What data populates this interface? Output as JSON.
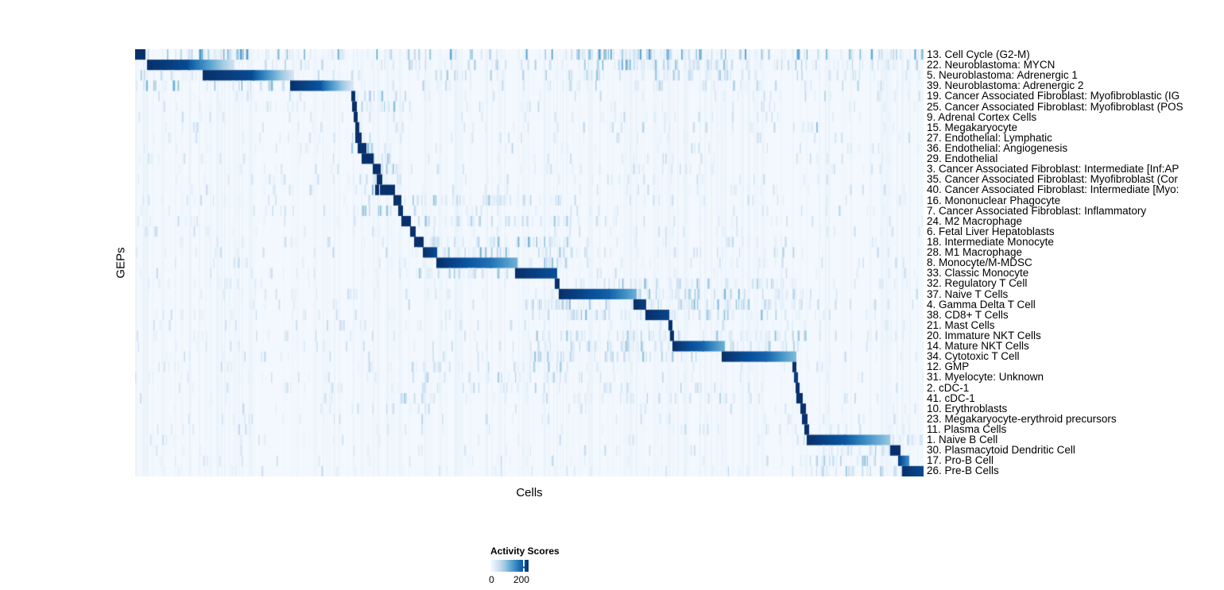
{
  "colors": {
    "scale": [
      "#f7fbff",
      "#deebf7",
      "#c6dbef",
      "#9ecae1",
      "#6baed6",
      "#4292c6",
      "#2171b5",
      "#08519c",
      "#08306b"
    ],
    "text": "#000000",
    "page_background": "#ffffff"
  },
  "legend": {
    "title": "Activity Scores",
    "min_label": "0",
    "max_label": "200"
  },
  "chart_data": {
    "type": "heatmap",
    "title": "",
    "xlabel": "Cells",
    "ylabel": "GEPs",
    "grid": false,
    "legend_position": "bottom",
    "colorbar": {
      "title": "Activity Scores",
      "tick_values": [
        0,
        200
      ],
      "tick_labels": [
        "0",
        "200"
      ]
    },
    "n_rows": 41,
    "rows": [
      {
        "label": "13. Cell Cycle (G2-M)",
        "blocks": [
          [
            0.0,
            0.012,
            1,
            1
          ]
        ],
        "noise": [
          [
            0.012,
            1,
            0.3,
            0.55
          ],
          [
            0.55,
            0.72,
            0.35,
            0.6
          ],
          [
            0.07,
            0.14,
            0.4,
            0.6
          ]
        ]
      },
      {
        "label": "22. Neuroblastoma: MYCN",
        "blocks": [
          [
            0.016,
            0.068,
            1,
            0.9
          ],
          [
            0.068,
            0.125,
            0.85,
            0.2
          ]
        ],
        "noise": [
          [
            0.125,
            1,
            0.22,
            0.28
          ],
          [
            0.55,
            0.75,
            0.3,
            0.45
          ]
        ]
      },
      {
        "label": "5. Neuroblastoma: Adrenergic 1",
        "blocks": [
          [
            0.086,
            0.15,
            1,
            0.9
          ],
          [
            0.15,
            0.2,
            0.85,
            0.18
          ]
        ],
        "noise": [
          [
            0,
            0.085,
            0.3,
            0.4
          ],
          [
            0.2,
            1,
            0.15,
            0.28
          ],
          [
            0.55,
            0.75,
            0.25,
            0.4
          ]
        ]
      },
      {
        "label": "39. Neuroblastoma: Adrenergic 2",
        "blocks": [
          [
            0.197,
            0.237,
            1,
            0.85
          ],
          [
            0.237,
            0.276,
            0.8,
            0.15
          ]
        ],
        "noise": [
          [
            0,
            0.19,
            0.3,
            0.45
          ],
          [
            0.28,
            1,
            0.14,
            0.28
          ]
        ]
      },
      {
        "label": "19. Cancer Associated Fibroblast: Myofibroblastic (IG",
        "blocks": [
          [
            0.2745,
            0.278,
            1,
            1
          ]
        ],
        "noise": [
          [
            0.28,
            0.35,
            0.25,
            0.4
          ],
          [
            0,
            1,
            0.08,
            0.22
          ]
        ]
      },
      {
        "label": "25. Cancer Associated Fibroblast: Myofibroblast (POS",
        "blocks": [
          [
            0.276,
            0.28,
            1,
            1
          ]
        ],
        "noise": [
          [
            0.28,
            0.35,
            0.25,
            0.4
          ],
          [
            0,
            1,
            0.08,
            0.22
          ]
        ]
      },
      {
        "label": "9. Adrenal Cortex Cells",
        "blocks": [
          [
            0.278,
            0.281,
            1,
            1
          ]
        ],
        "noise": [
          [
            0,
            1,
            0.08,
            0.2
          ]
        ]
      },
      {
        "label": "15. Megakaryocyte",
        "blocks": [
          [
            0.2795,
            0.2825,
            1,
            1
          ]
        ],
        "noise": [
          [
            0,
            1,
            0.08,
            0.22
          ],
          [
            0.84,
            0.88,
            0.2,
            0.4
          ]
        ]
      },
      {
        "label": "27. Endothelial: Lymphatic",
        "blocks": [
          [
            0.28,
            0.286,
            1,
            1
          ]
        ],
        "noise": [
          [
            0.27,
            0.3,
            0.3,
            0.45
          ],
          [
            0,
            1,
            0.07,
            0.2
          ]
        ]
      },
      {
        "label": "36. Endothelial: Angiogenesis",
        "blocks": [
          [
            0.283,
            0.292,
            1,
            1
          ]
        ],
        "noise": [
          [
            0.27,
            0.31,
            0.3,
            0.45
          ],
          [
            0,
            1,
            0.07,
            0.2
          ]
        ]
      },
      {
        "label": "29. Endothelial",
        "blocks": [
          [
            0.288,
            0.301,
            1,
            1
          ]
        ],
        "noise": [
          [
            0.27,
            0.32,
            0.3,
            0.45
          ],
          [
            0,
            1,
            0.07,
            0.2
          ]
        ]
      },
      {
        "label": "3. Cancer Associated Fibroblast: Intermediate [Inf:AP",
        "blocks": [
          [
            0.302,
            0.31,
            1,
            1
          ]
        ],
        "noise": [
          [
            0.31,
            0.35,
            0.3,
            0.5
          ],
          [
            0,
            1,
            0.08,
            0.2
          ]
        ]
      },
      {
        "label": "35. Cancer Associated Fibroblast: Myofibroblast (Cor",
        "blocks": [
          [
            0.307,
            0.312,
            1,
            1
          ]
        ],
        "noise": [
          [
            0.27,
            0.35,
            0.25,
            0.4
          ],
          [
            0,
            1,
            0.08,
            0.2
          ]
        ]
      },
      {
        "label": "40. Cancer Associated Fibroblast: Intermediate [Myo:",
        "blocks": [
          [
            0.3045,
            0.3075,
            1,
            1
          ],
          [
            0.311,
            0.328,
            1,
            1
          ]
        ],
        "noise": [
          [
            0.27,
            0.35,
            0.25,
            0.4
          ],
          [
            0,
            1,
            0.08,
            0.2
          ]
        ]
      },
      {
        "label": "16. Mononuclear Phagocyte",
        "blocks": [
          [
            0.328,
            0.336,
            1,
            1
          ]
        ],
        "noise": [
          [
            0.336,
            0.55,
            0.3,
            0.4
          ],
          [
            0,
            1,
            0.08,
            0.2
          ]
        ]
      },
      {
        "label": "7. Cancer Associated Fibroblast: Inflammatory",
        "blocks": [
          [
            0.334,
            0.338,
            1,
            1
          ]
        ],
        "noise": [
          [
            0.27,
            0.34,
            0.25,
            0.4
          ],
          [
            0,
            1,
            0.08,
            0.2
          ]
        ]
      },
      {
        "label": "24. M2 Macrophage",
        "blocks": [
          [
            0.338,
            0.348,
            1,
            1
          ]
        ],
        "noise": [
          [
            0.35,
            0.55,
            0.3,
            0.4
          ],
          [
            0,
            1,
            0.08,
            0.2
          ]
        ]
      },
      {
        "label": "6. Fetal Liver Hepatoblasts",
        "blocks": [
          [
            0.349,
            0.354,
            1,
            1
          ]
        ],
        "noise": [
          [
            0,
            1,
            0.08,
            0.2
          ]
        ]
      },
      {
        "label": "18. Intermediate Monocyte",
        "blocks": [
          [
            0.354,
            0.364,
            1,
            1
          ]
        ],
        "noise": [
          [
            0.364,
            0.55,
            0.35,
            0.45
          ],
          [
            0,
            1,
            0.08,
            0.2
          ]
        ]
      },
      {
        "label": "28. M1 Macrophage",
        "blocks": [
          [
            0.365,
            0.382,
            1,
            0.9
          ]
        ],
        "noise": [
          [
            0.382,
            0.55,
            0.35,
            0.45
          ],
          [
            0.55,
            0.85,
            0.12,
            0.25
          ],
          [
            0,
            1,
            0.07,
            0.2
          ]
        ]
      },
      {
        "label": "8. Monocyte/M-MDSC",
        "blocks": [
          [
            0.383,
            0.45,
            1,
            0.75
          ],
          [
            0.45,
            0.483,
            0.75,
            0.5
          ]
        ],
        "noise": [
          [
            0.483,
            0.55,
            0.35,
            0.45
          ],
          [
            0,
            1,
            0.08,
            0.2
          ]
        ]
      },
      {
        "label": "33. Classic Monocyte",
        "blocks": [
          [
            0.482,
            0.534,
            1,
            0.88
          ]
        ],
        "noise": [
          [
            0.33,
            0.48,
            0.3,
            0.4
          ],
          [
            0,
            1,
            0.08,
            0.2
          ]
        ]
      },
      {
        "label": "32. Regulatory T Cell",
        "blocks": [
          [
            0.533,
            0.537,
            1,
            1
          ]
        ],
        "noise": [
          [
            0.54,
            0.85,
            0.3,
            0.38
          ],
          [
            0,
            1,
            0.08,
            0.2
          ]
        ]
      },
      {
        "label": "37. Naive T Cells",
        "blocks": [
          [
            0.538,
            0.6,
            1,
            0.82
          ],
          [
            0.6,
            0.635,
            0.82,
            0.5
          ]
        ],
        "noise": [
          [
            0.635,
            0.85,
            0.3,
            0.38
          ],
          [
            0,
            1,
            0.08,
            0.2
          ]
        ]
      },
      {
        "label": "4. Gamma Delta T Cell",
        "blocks": [
          [
            0.633,
            0.647,
            1,
            0.95
          ]
        ],
        "noise": [
          [
            0.5,
            0.85,
            0.3,
            0.38
          ],
          [
            0,
            1,
            0.08,
            0.2
          ]
        ]
      },
      {
        "label": "38. CD8+ T Cells",
        "blocks": [
          [
            0.648,
            0.676,
            1,
            0.92
          ]
        ],
        "noise": [
          [
            0.5,
            0.85,
            0.3,
            0.38
          ],
          [
            0,
            1,
            0.08,
            0.2
          ]
        ]
      },
      {
        "label": "21. Mast Cells",
        "blocks": [
          [
            0.6765,
            0.6795,
            1,
            1
          ]
        ],
        "noise": [
          [
            0,
            1,
            0.09,
            0.22
          ]
        ]
      },
      {
        "label": "20. Immature NKT Cells",
        "blocks": [
          [
            0.679,
            0.682,
            1,
            1
          ]
        ],
        "noise": [
          [
            0.5,
            0.85,
            0.3,
            0.38
          ],
          [
            0,
            1,
            0.08,
            0.2
          ]
        ]
      },
      {
        "label": "14. Mature NKT Cells",
        "blocks": [
          [
            0.682,
            0.72,
            1,
            0.8
          ],
          [
            0.72,
            0.746,
            0.8,
            0.5
          ]
        ],
        "noise": [
          [
            0.5,
            0.68,
            0.3,
            0.38
          ],
          [
            0.746,
            0.85,
            0.3,
            0.38
          ],
          [
            0,
            1,
            0.07,
            0.2
          ]
        ]
      },
      {
        "label": "34. Cytotoxic T Cell",
        "blocks": [
          [
            0.744,
            0.8,
            1,
            0.8
          ],
          [
            0.8,
            0.837,
            0.8,
            0.45
          ]
        ],
        "noise": [
          [
            0.5,
            0.74,
            0.3,
            0.38
          ],
          [
            0,
            1,
            0.07,
            0.2
          ]
        ]
      },
      {
        "label": "12. GMP",
        "blocks": [
          [
            0.8345,
            0.8375,
            1,
            1
          ]
        ],
        "noise": [
          [
            0.35,
            0.55,
            0.15,
            0.3
          ],
          [
            0,
            1,
            0.07,
            0.18
          ]
        ]
      },
      {
        "label": "31. Myelocyte: Unknown",
        "blocks": [
          [
            0.836,
            0.839,
            0.95,
            0.95
          ]
        ],
        "noise": [
          [
            0.35,
            0.55,
            0.18,
            0.3
          ],
          [
            0,
            1,
            0.07,
            0.18
          ]
        ]
      },
      {
        "label": "2. cDC-1",
        "blocks": [
          [
            0.8385,
            0.8415,
            1,
            1
          ]
        ],
        "noise": [
          [
            0.33,
            0.85,
            0.12,
            0.28
          ],
          [
            0,
            1,
            0.06,
            0.18
          ]
        ]
      },
      {
        "label": "41. cDC-1",
        "blocks": [
          [
            0.839,
            0.845,
            1,
            1
          ]
        ],
        "noise": [
          [
            0.33,
            0.85,
            0.12,
            0.28
          ],
          [
            0,
            1,
            0.06,
            0.18
          ]
        ]
      },
      {
        "label": "10. Erythroblasts",
        "blocks": [
          [
            0.844,
            0.849,
            1,
            1
          ]
        ],
        "noise": [
          [
            0,
            1,
            0.07,
            0.2
          ]
        ]
      },
      {
        "label": "23. Megakaryocyte-erythroid precursors",
        "blocks": [
          [
            0.846,
            0.851,
            1,
            1
          ]
        ],
        "noise": [
          [
            0,
            1,
            0.07,
            0.2
          ]
        ]
      },
      {
        "label": "11. Plasma Cells",
        "blocks": [
          [
            0.849,
            0.853,
            1,
            1
          ]
        ],
        "noise": [
          [
            0.85,
            1,
            0.15,
            0.3
          ],
          [
            0,
            1,
            0.06,
            0.18
          ]
        ]
      },
      {
        "label": "1. Naive B Cell",
        "blocks": [
          [
            0.852,
            0.9,
            1,
            0.85
          ],
          [
            0.9,
            0.955,
            0.85,
            0.4
          ]
        ],
        "noise": [
          [
            0.955,
            1,
            0.3,
            0.4
          ],
          [
            0,
            1,
            0.06,
            0.18
          ]
        ]
      },
      {
        "label": "30. Plasmacytoid Dendritic Cell",
        "blocks": [
          [
            0.958,
            0.969,
            1,
            1
          ]
        ],
        "noise": [
          [
            0.85,
            0.958,
            0.25,
            0.35
          ],
          [
            0,
            1,
            0.06,
            0.18
          ]
        ]
      },
      {
        "label": "17. Pro-B Cell",
        "blocks": [
          [
            0.968,
            0.98,
            0.95,
            0.65
          ]
        ],
        "noise": [
          [
            0.85,
            1,
            0.25,
            0.38
          ],
          [
            0,
            1,
            0.06,
            0.18
          ]
        ]
      },
      {
        "label": "26. Pre-B Cells",
        "blocks": [
          [
            0.973,
            1.0,
            1,
            0.9
          ]
        ],
        "noise": [
          [
            0.85,
            0.973,
            0.3,
            0.4
          ],
          [
            0,
            1,
            0.07,
            0.2
          ]
        ]
      }
    ]
  }
}
